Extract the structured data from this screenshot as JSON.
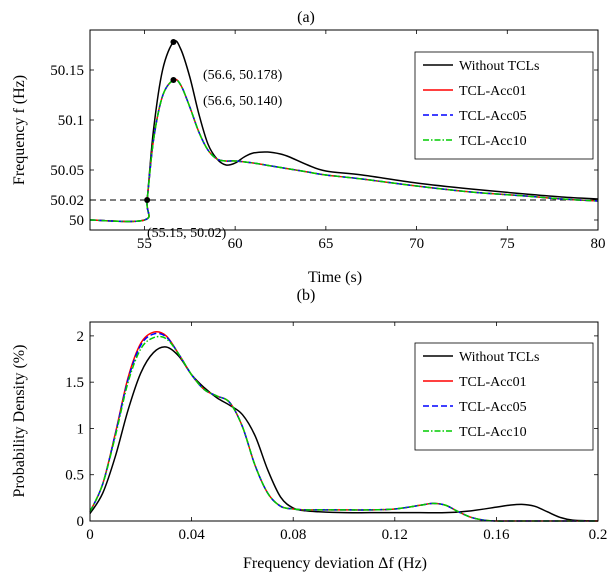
{
  "chart_data": [
    {
      "panel_title": "(a)",
      "type": "line",
      "xlabel": "Time (s)",
      "ylabel": "Frequency f (Hz)",
      "xlim": [
        52,
        80
      ],
      "ylim": [
        49.99,
        50.19
      ],
      "xticks": [
        55,
        60,
        65,
        70,
        75,
        80
      ],
      "xtick_labels": [
        "55",
        "60",
        "65",
        "70",
        "75",
        "80"
      ],
      "yticks": [
        50,
        50.02,
        50.05,
        50.1,
        50.15
      ],
      "ytick_labels": [
        "50",
        "50.02",
        "50.05",
        "50.1",
        "50.15"
      ],
      "grid": false,
      "legend_position": "top-right",
      "threshold_line": {
        "y": 50.02,
        "style": "dashed"
      },
      "series": [
        {
          "name": "Without TCLs",
          "color": "#000000",
          "dash": "solid",
          "x": [
            52,
            55,
            55.15,
            55.5,
            56,
            56.6,
            57,
            57.5,
            58,
            58.5,
            59,
            59.5,
            60,
            60.5,
            61,
            61.8,
            62.5,
            63,
            64,
            65,
            67,
            70,
            73,
            76,
            78,
            80
          ],
          "y": [
            50.0,
            50.0,
            50.02,
            50.09,
            50.15,
            50.178,
            50.171,
            50.143,
            50.106,
            50.076,
            50.061,
            50.055,
            50.057,
            50.063,
            50.067,
            50.068,
            50.066,
            50.063,
            50.055,
            50.049,
            50.045,
            50.037,
            50.031,
            50.026,
            50.023,
            50.021
          ]
        },
        {
          "name": "TCL-Acc01",
          "color": "#ff0000",
          "dash": "solid",
          "x": [
            52,
            55,
            55.15,
            55.5,
            56,
            56.6,
            57,
            57.5,
            58,
            58.5,
            59,
            59.5,
            60,
            61,
            62,
            63,
            64,
            65,
            67,
            70,
            73,
            76,
            78,
            80
          ],
          "y": [
            50.0,
            50.0,
            50.02,
            50.08,
            50.124,
            50.14,
            50.135,
            50.113,
            50.088,
            50.07,
            50.061,
            50.059,
            50.059,
            50.057,
            50.054,
            50.051,
            50.048,
            50.045,
            50.041,
            50.034,
            50.028,
            50.024,
            50.021,
            50.019
          ]
        },
        {
          "name": "TCL-Acc05",
          "color": "#0000ff",
          "dash": "dashed",
          "x": [
            52,
            55,
            55.15,
            55.5,
            56,
            56.6,
            57,
            57.5,
            58,
            58.5,
            59,
            59.5,
            60,
            61,
            62,
            63,
            64,
            65,
            67,
            70,
            73,
            76,
            78,
            80
          ],
          "y": [
            50.0,
            50.0,
            50.02,
            50.08,
            50.124,
            50.14,
            50.135,
            50.113,
            50.088,
            50.07,
            50.061,
            50.059,
            50.059,
            50.057,
            50.054,
            50.051,
            50.048,
            50.045,
            50.041,
            50.034,
            50.028,
            50.024,
            50.021,
            50.019
          ]
        },
        {
          "name": "TCL-Acc10",
          "color": "#00cc00",
          "dash": "dashdot",
          "x": [
            52,
            55,
            55.15,
            55.5,
            56,
            56.6,
            57,
            57.5,
            58,
            58.5,
            59,
            59.5,
            60,
            61,
            62,
            63,
            64,
            65,
            67,
            70,
            73,
            76,
            78,
            80
          ],
          "y": [
            50.0,
            50.0,
            50.02,
            50.08,
            50.124,
            50.14,
            50.135,
            50.113,
            50.088,
            50.07,
            50.061,
            50.059,
            50.059,
            50.057,
            50.054,
            50.051,
            50.048,
            50.045,
            50.041,
            50.034,
            50.028,
            50.024,
            50.021,
            50.019
          ]
        }
      ],
      "annotations": [
        {
          "text": "(56.6, 50.178)",
          "x": 56.6,
          "y": 50.178
        },
        {
          "text": "(56.6, 50.140)",
          "x": 56.6,
          "y": 50.14
        },
        {
          "text": "(55.15, 50.02)",
          "x": 55.15,
          "y": 50.02
        }
      ]
    },
    {
      "panel_title": "(b)",
      "type": "line",
      "xlabel": "Frequency deviation Δf (Hz)",
      "ylabel": "Probability Density (%)",
      "xlim": [
        0,
        0.2
      ],
      "ylim": [
        0,
        2.15
      ],
      "xticks": [
        0,
        0.04,
        0.08,
        0.12,
        0.16,
        0.2
      ],
      "xtick_labels": [
        "0",
        "0.04",
        "0.08",
        "0.12",
        "0.16",
        "0.2"
      ],
      "yticks": [
        0,
        0.5,
        1,
        1.5,
        2
      ],
      "ytick_labels": [
        "0",
        "0.5",
        "1",
        "1.5",
        "2"
      ],
      "grid": false,
      "legend_position": "top-right",
      "series": [
        {
          "name": "Without TCLs",
          "color": "#000000",
          "dash": "solid",
          "x": [
            0,
            0.005,
            0.01,
            0.015,
            0.02,
            0.025,
            0.03,
            0.035,
            0.04,
            0.045,
            0.05,
            0.055,
            0.06,
            0.065,
            0.07,
            0.075,
            0.08,
            0.085,
            0.09,
            0.1,
            0.11,
            0.12,
            0.13,
            0.14,
            0.15,
            0.16,
            0.165,
            0.17,
            0.175,
            0.18,
            0.185,
            0.19,
            0.2
          ],
          "y": [
            0.08,
            0.3,
            0.7,
            1.2,
            1.6,
            1.82,
            1.88,
            1.78,
            1.58,
            1.44,
            1.33,
            1.25,
            1.15,
            0.92,
            0.55,
            0.26,
            0.14,
            0.11,
            0.1,
            0.09,
            0.09,
            0.09,
            0.09,
            0.09,
            0.11,
            0.15,
            0.17,
            0.18,
            0.16,
            0.1,
            0.04,
            0.01,
            0.0
          ]
        },
        {
          "name": "TCL-Acc01",
          "color": "#ff0000",
          "dash": "solid",
          "x": [
            0,
            0.005,
            0.01,
            0.015,
            0.02,
            0.025,
            0.03,
            0.035,
            0.04,
            0.045,
            0.05,
            0.055,
            0.06,
            0.065,
            0.07,
            0.075,
            0.08,
            0.085,
            0.09,
            0.1,
            0.11,
            0.12,
            0.13,
            0.135,
            0.14,
            0.145,
            0.15,
            0.155,
            0.16,
            0.17,
            0.2
          ],
          "y": [
            0.1,
            0.4,
            0.95,
            1.55,
            1.92,
            2.04,
            2.0,
            1.8,
            1.58,
            1.42,
            1.35,
            1.28,
            1.02,
            0.6,
            0.3,
            0.16,
            0.13,
            0.12,
            0.12,
            0.12,
            0.12,
            0.13,
            0.17,
            0.19,
            0.17,
            0.1,
            0.04,
            0.01,
            0.0,
            0.0,
            0.0
          ]
        },
        {
          "name": "TCL-Acc05",
          "color": "#0000ff",
          "dash": "dashed",
          "x": [
            0,
            0.005,
            0.01,
            0.015,
            0.02,
            0.025,
            0.03,
            0.035,
            0.04,
            0.045,
            0.05,
            0.055,
            0.06,
            0.065,
            0.07,
            0.075,
            0.08,
            0.085,
            0.09,
            0.1,
            0.11,
            0.12,
            0.13,
            0.135,
            0.14,
            0.145,
            0.15,
            0.155,
            0.16,
            0.17,
            0.2
          ],
          "y": [
            0.1,
            0.4,
            0.94,
            1.53,
            1.9,
            2.02,
            1.99,
            1.8,
            1.58,
            1.42,
            1.35,
            1.28,
            1.02,
            0.6,
            0.3,
            0.16,
            0.13,
            0.12,
            0.12,
            0.12,
            0.12,
            0.13,
            0.17,
            0.19,
            0.17,
            0.1,
            0.04,
            0.01,
            0.0,
            0.0,
            0.0
          ]
        },
        {
          "name": "TCL-Acc10",
          "color": "#00cc00",
          "dash": "dashdot",
          "x": [
            0,
            0.005,
            0.01,
            0.015,
            0.02,
            0.025,
            0.03,
            0.035,
            0.04,
            0.045,
            0.05,
            0.055,
            0.06,
            0.065,
            0.07,
            0.075,
            0.08,
            0.085,
            0.09,
            0.1,
            0.11,
            0.12,
            0.13,
            0.135,
            0.14,
            0.145,
            0.15,
            0.155,
            0.16,
            0.17,
            0.2
          ],
          "y": [
            0.1,
            0.4,
            0.92,
            1.5,
            1.86,
            1.98,
            1.97,
            1.8,
            1.58,
            1.42,
            1.35,
            1.28,
            1.02,
            0.6,
            0.3,
            0.16,
            0.13,
            0.12,
            0.12,
            0.12,
            0.12,
            0.13,
            0.17,
            0.19,
            0.17,
            0.1,
            0.04,
            0.01,
            0.0,
            0.0,
            0.0
          ]
        }
      ]
    }
  ]
}
